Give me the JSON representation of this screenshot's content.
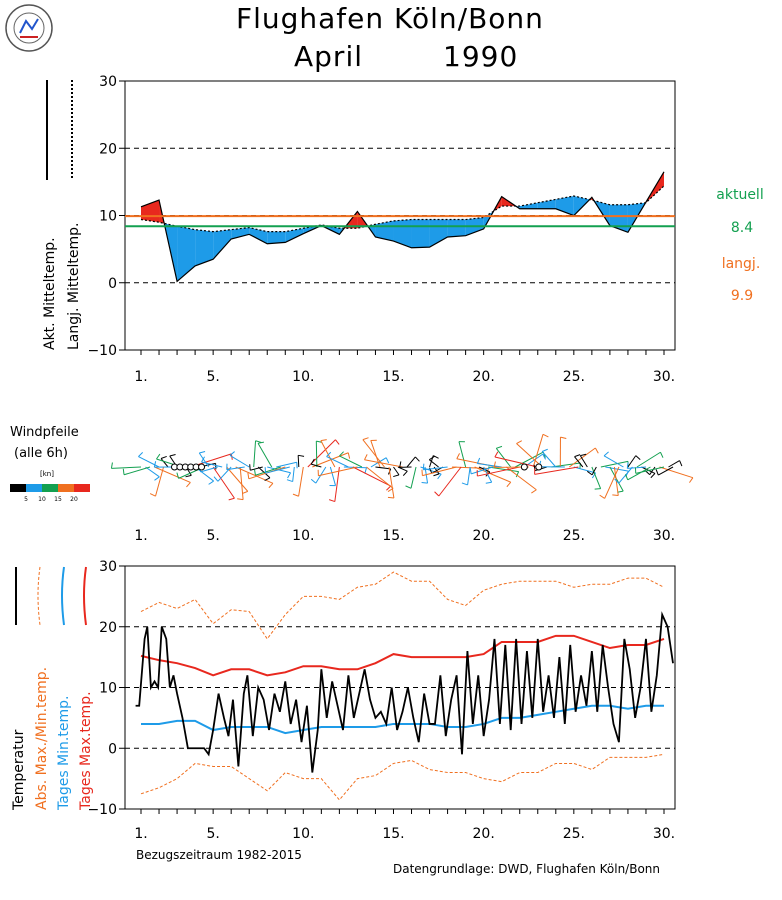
{
  "header": {
    "station": "Flughafen Köln/Bonn",
    "month": "April",
    "year": "1990"
  },
  "chart_data": [
    {
      "type": "area",
      "ylim": [
        -10,
        30
      ],
      "yticks": [
        "30",
        "20",
        "10",
        "0",
        "−10"
      ],
      "xticks": [
        "1.",
        "5.",
        "10.",
        "15.",
        "20.",
        "25.",
        "30."
      ],
      "legend": {
        "actual_label": "Akt. Mitteltemp.",
        "longterm_label": "Langj. Mitteltemp."
      },
      "summary": {
        "aktuell_label": "aktuell",
        "aktuell_value": "8.4",
        "langj_label": "langj.",
        "langj_value": "9.9"
      },
      "colors": {
        "above": "#e8281e",
        "below": "#1e9be8",
        "aktuell": "#13a050",
        "langj": "#f07020"
      },
      "days": [
        1,
        2,
        3,
        4,
        5,
        6,
        7,
        8,
        9,
        10,
        11,
        12,
        13,
        14,
        15,
        16,
        17,
        18,
        19,
        20,
        21,
        22,
        23,
        24,
        25,
        26,
        27,
        28,
        29,
        30
      ],
      "actual_mean": [
        11.3,
        12.3,
        0.2,
        2.5,
        3.5,
        6.5,
        7.2,
        5.8,
        6.0,
        7.3,
        8.5,
        7.2,
        10.6,
        6.8,
        6.2,
        5.2,
        5.3,
        6.8,
        7.0,
        8.0,
        12.8,
        11.0,
        11.0,
        11.0,
        10.0,
        12.7,
        8.5,
        7.5,
        12.0,
        16.5
      ],
      "longterm_mean": [
        9.4,
        9.0,
        8.4,
        7.9,
        7.6,
        7.9,
        8.2,
        7.6,
        7.6,
        8.1,
        8.6,
        8.1,
        8.1,
        8.7,
        9.2,
        9.4,
        9.4,
        9.4,
        9.4,
        9.7,
        11.4,
        11.4,
        11.9,
        12.4,
        12.9,
        12.3,
        11.6,
        11.6,
        11.9,
        14.4
      ]
    },
    {
      "type": "line",
      "ylim": [
        -10,
        30
      ],
      "yticks": [
        "30",
        "20",
        "10",
        "0",
        "−10"
      ],
      "xticks": [
        "1.",
        "5.",
        "10.",
        "15.",
        "20.",
        "25.",
        "30."
      ],
      "series": [
        {
          "name": "Temperatur",
          "color": "#000000",
          "x": [
            0.7,
            0.9,
            1.2,
            1.35,
            1.55,
            1.75,
            1.95,
            2.15,
            2.4,
            2.6,
            2.8,
            3.0,
            3.3,
            3.6,
            3.9,
            4.2,
            4.5,
            4.75,
            5.0,
            5.3,
            5.6,
            5.85,
            6.1,
            6.4,
            6.7,
            6.9,
            7.2,
            7.5,
            7.8,
            8.1,
            8.4,
            8.7,
            9.0,
            9.3,
            9.6,
            9.9,
            10.2,
            10.5,
            10.8,
            11.0,
            11.3,
            11.6,
            11.9,
            12.2,
            12.5,
            12.8,
            13.1,
            13.4,
            13.7,
            14.0,
            14.3,
            14.6,
            14.9,
            15.2,
            15.5,
            15.8,
            16.1,
            16.4,
            16.7,
            17.0,
            17.3,
            17.6,
            17.9,
            18.2,
            18.5,
            18.8,
            19.1,
            19.4,
            19.7,
            20.0,
            20.3,
            20.6,
            20.9,
            21.2,
            21.5,
            21.8,
            22.1,
            22.4,
            22.7,
            23.0,
            23.3,
            23.6,
            23.9,
            24.2,
            24.5,
            24.8,
            25.1,
            25.4,
            25.7,
            26.0,
            26.3,
            26.6,
            26.9,
            27.2,
            27.5,
            27.8,
            28.1,
            28.4,
            28.7,
            29.0,
            29.3,
            29.6,
            29.9,
            30.2,
            30.5
          ],
          "y": [
            7,
            7,
            18,
            20,
            10,
            11,
            10,
            20,
            18,
            10,
            12,
            9,
            5,
            0,
            0,
            0,
            0,
            -1,
            3,
            9,
            5,
            2,
            8,
            -3,
            9,
            12,
            2,
            10,
            8,
            3,
            9,
            6,
            11,
            4,
            8,
            1,
            7,
            -4,
            3,
            13,
            5,
            11,
            7,
            3,
            12,
            5,
            9,
            13,
            8,
            5,
            6,
            4,
            10,
            3,
            6,
            10,
            5,
            1,
            9,
            4,
            4,
            12,
            2,
            8,
            12,
            -1,
            16,
            4,
            12,
            2,
            8,
            18,
            4,
            17,
            3,
            18,
            4,
            16,
            5,
            18,
            6,
            12,
            5,
            15,
            4,
            17,
            6,
            12,
            7,
            16,
            6,
            17,
            10,
            4,
            1,
            18,
            13,
            5,
            10,
            18,
            6,
            12,
            22,
            20,
            14
          ]
        },
        {
          "name": "Abs. Max./Min.temp.",
          "color": "#f07020",
          "x": [
            1,
            2,
            3,
            4,
            5,
            6,
            7,
            8,
            9,
            10,
            11,
            12,
            13,
            14,
            15,
            16,
            17,
            18,
            19,
            20,
            21,
            22,
            23,
            24,
            25,
            26,
            27,
            28,
            29,
            30
          ],
          "y": [
            22.5,
            24,
            23,
            24.5,
            20.5,
            22.8,
            22.5,
            18,
            22,
            25,
            25,
            24.5,
            26.5,
            27,
            29,
            27.5,
            27.5,
            24.5,
            23.5,
            26,
            27,
            27.5,
            27.5,
            27.5,
            26.5,
            27,
            27,
            28,
            28,
            26.5
          ]
        },
        {
          "name": "Abs. Min",
          "color": "#f07020",
          "x": [
            1,
            2,
            3,
            4,
            5,
            6,
            7,
            8,
            9,
            10,
            11,
            12,
            13,
            14,
            15,
            16,
            17,
            18,
            19,
            20,
            21,
            22,
            23,
            24,
            25,
            26,
            27,
            28,
            29,
            30
          ],
          "y": [
            -7.5,
            -6.5,
            -5,
            -2.5,
            -3,
            -3,
            -5,
            -7,
            -4,
            -5,
            -5,
            -8.5,
            -5,
            -4.5,
            -2.5,
            -2,
            -3.5,
            -4,
            -4,
            -5,
            -5.5,
            -4,
            -4,
            -2.5,
            -2.5,
            -3.5,
            -1.5,
            -1.5,
            -1.5,
            -1
          ]
        },
        {
          "name": "Tages Max.temp.",
          "color": "#e8281e",
          "x": [
            1,
            2,
            3,
            4,
            5,
            6,
            7,
            8,
            9,
            10,
            11,
            12,
            13,
            14,
            15,
            16,
            17,
            18,
            19,
            20,
            21,
            22,
            23,
            24,
            25,
            26,
            27,
            28,
            29,
            30
          ],
          "y": [
            15.2,
            14.5,
            14,
            13.2,
            12,
            13,
            13,
            12,
            12.5,
            13.5,
            13.5,
            13,
            13,
            14,
            15.5,
            15,
            15,
            15,
            15,
            15.5,
            17.5,
            17.5,
            17.5,
            18.5,
            18.5,
            17.5,
            16.5,
            17,
            17,
            18
          ]
        },
        {
          "name": "Tages Min.temp.",
          "color": "#1e9be8",
          "x": [
            1,
            2,
            3,
            4,
            5,
            6,
            7,
            8,
            9,
            10,
            11,
            12,
            13,
            14,
            15,
            16,
            17,
            18,
            19,
            20,
            21,
            22,
            23,
            24,
            25,
            26,
            27,
            28,
            29,
            30
          ],
          "y": [
            4,
            4,
            4.5,
            4.5,
            3,
            3.5,
            3.5,
            3.5,
            2.5,
            3,
            3.5,
            3.5,
            3.5,
            3.5,
            4,
            4,
            4,
            3.5,
            3.5,
            4,
            5,
            5,
            5.5,
            6,
            6.5,
            7,
            7,
            6.5,
            7,
            7
          ]
        }
      ],
      "labels": {
        "temp": "Temperatur",
        "absmaxmin": "Abs. Max./Min.temp.",
        "tagesmin": "Tages Min.temp.",
        "tagesmax": "Tages Max.temp."
      }
    }
  ],
  "wind": {
    "title_line1": "Windpfeile",
    "title_line2": "(alle 6h)",
    "unit": "[kn]",
    "scale_labels": [
      "5",
      "10",
      "15",
      "20"
    ],
    "scale_colors": [
      "#000000",
      "#1e9be8",
      "#13a050",
      "#f07020",
      "#e8281e"
    ],
    "xticks": [
      "1.",
      "5.",
      "10.",
      "15.",
      "20.",
      "25.",
      "30."
    ]
  },
  "footer": {
    "reference": "Bezugszeitraum 1982-2015",
    "source": "Datengrundlage: DWD, Flughafen Köln/Bonn"
  },
  "logo": {
    "icon": "society-seal-icon"
  }
}
